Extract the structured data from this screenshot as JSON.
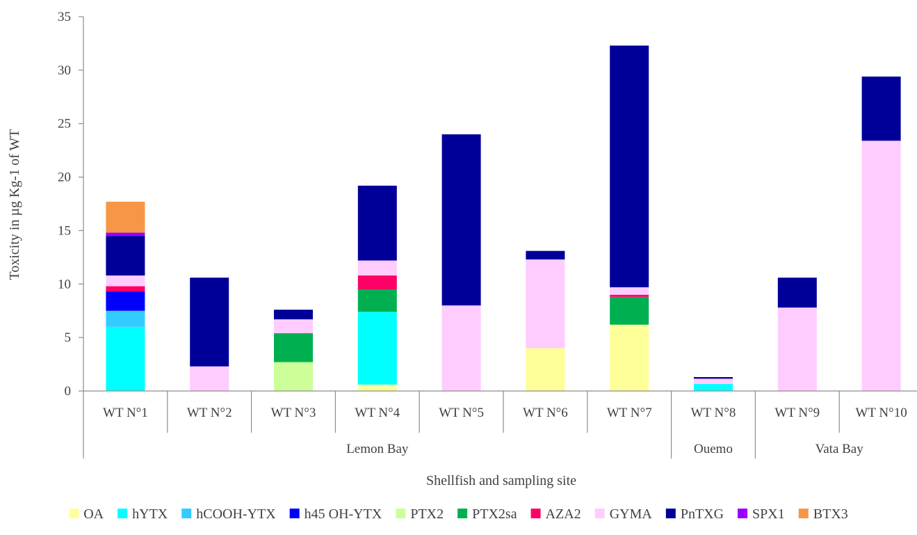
{
  "chart_data": {
    "type": "bar",
    "stacked": true,
    "ylabel": "Toxicity in µg Kg-1 of WT",
    "xlabel": "Shellfish and sampling site",
    "ylim": [
      0,
      35
    ],
    "yticks": [
      0,
      5,
      10,
      15,
      20,
      25,
      30,
      35
    ],
    "grid": false,
    "legend_position": "bottom",
    "categories": [
      "WT N°1",
      "WT N°2",
      "WT N°3",
      "WT N°4",
      "WT N°5",
      "WT N°6",
      "WT N°7",
      "WT N°8",
      "WT N°9",
      "WT N°10"
    ],
    "groups": [
      {
        "label": "Lemon Bay",
        "count": 7
      },
      {
        "label": "Ouemo",
        "count": 1
      },
      {
        "label": "Vata Bay",
        "count": 2
      }
    ],
    "series": [
      {
        "name": "OA",
        "color": "#FFFF99",
        "values": [
          0,
          0,
          0,
          0.6,
          0,
          4.0,
          6.2,
          0,
          0,
          0
        ]
      },
      {
        "name": "hYTX",
        "color": "#00FFFF",
        "values": [
          6.0,
          0,
          0,
          6.8,
          0,
          0,
          0,
          0.65,
          0,
          0
        ]
      },
      {
        "name": "hCOOH-YTX",
        "color": "#33CCFF",
        "values": [
          1.5,
          0,
          0,
          0,
          0,
          0,
          0,
          0,
          0,
          0
        ]
      },
      {
        "name": "h45 OH-YTX",
        "color": "#0000FF",
        "values": [
          1.8,
          0,
          0,
          0,
          0,
          0,
          0,
          0,
          0,
          0
        ]
      },
      {
        "name": "PTX2",
        "color": "#CCFF99",
        "values": [
          0,
          0,
          2.7,
          0,
          0,
          0,
          0,
          0,
          0,
          0
        ]
      },
      {
        "name": "PTX2sa",
        "color": "#00B050",
        "values": [
          0,
          0,
          2.7,
          2.1,
          0,
          0,
          2.6,
          0,
          0,
          0
        ]
      },
      {
        "name": "AZA2",
        "color": "#FF0066",
        "values": [
          0.5,
          0,
          0,
          1.3,
          0,
          0,
          0.2,
          0,
          0,
          0
        ]
      },
      {
        "name": "GYMA",
        "color": "#FFCCFF",
        "values": [
          1.0,
          2.3,
          1.3,
          1.4,
          8.0,
          8.3,
          0.7,
          0.5,
          7.8,
          23.4
        ]
      },
      {
        "name": "PnTXG",
        "color": "#000099",
        "values": [
          3.7,
          8.3,
          0.9,
          7.0,
          16.0,
          0.8,
          22.6,
          0.15,
          2.8,
          6.0
        ]
      },
      {
        "name": "SPX1",
        "color": "#9900FF",
        "values": [
          0.3,
          0,
          0,
          0,
          0,
          0,
          0,
          0,
          0,
          0
        ]
      },
      {
        "name": "BTX3",
        "color": "#F79646",
        "values": [
          2.9,
          0,
          0,
          0,
          0,
          0,
          0,
          0,
          0,
          0
        ]
      }
    ]
  }
}
